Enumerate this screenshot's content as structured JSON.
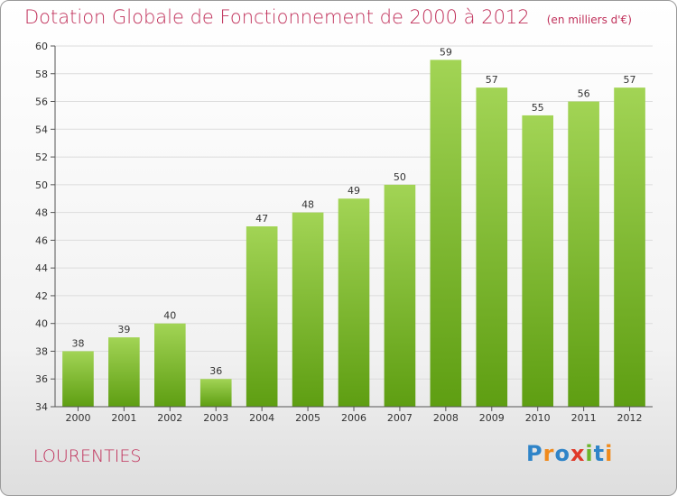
{
  "header": {
    "title": "Dotation Globale de Fonctionnement de 2000 à 2012",
    "unit": "(en milliers d'€)"
  },
  "footer": {
    "commune": "LOURENTIES",
    "logo_letters": [
      "P",
      "r",
      "o",
      "x",
      "i",
      "t",
      "i"
    ]
  },
  "colors": {
    "title": "#c0305a",
    "bar_top": "#a2d455",
    "bar_bottom": "#5e9e12"
  },
  "chart_data": {
    "type": "bar",
    "title": "Dotation Globale de Fonctionnement de 2000 à 2012",
    "subtitle": "(en milliers d'€)",
    "categories": [
      "2000",
      "2001",
      "2002",
      "2003",
      "2004",
      "2005",
      "2006",
      "2007",
      "2008",
      "2009",
      "2010",
      "2011",
      "2012"
    ],
    "values": [
      38,
      39,
      40,
      36,
      47,
      48,
      49,
      50,
      59,
      57,
      55,
      56,
      57
    ],
    "ylim": [
      34,
      60
    ],
    "yticks": [
      34,
      36,
      38,
      40,
      42,
      44,
      46,
      48,
      50,
      52,
      54,
      56,
      58,
      60
    ],
    "grid": true,
    "legend": "none"
  }
}
